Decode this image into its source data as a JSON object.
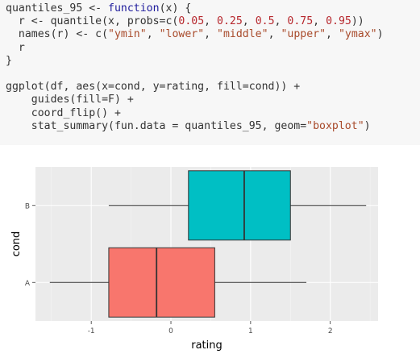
{
  "code": {
    "lines": [
      [
        {
          "t": "quantiles_95 <- "
        },
        {
          "t": "function",
          "c": "kw"
        },
        {
          "t": "(x) {"
        }
      ],
      [
        {
          "t": "  r <- quantile(x, probs=c("
        },
        {
          "t": "0.05",
          "c": "num"
        },
        {
          "t": ", "
        },
        {
          "t": "0.25",
          "c": "num"
        },
        {
          "t": ", "
        },
        {
          "t": "0.5",
          "c": "num"
        },
        {
          "t": ", "
        },
        {
          "t": "0.75",
          "c": "num"
        },
        {
          "t": ", "
        },
        {
          "t": "0.95",
          "c": "num"
        },
        {
          "t": "))"
        }
      ],
      [
        {
          "t": "  names(r) <- c("
        },
        {
          "t": "\"ymin\"",
          "c": "str"
        },
        {
          "t": ", "
        },
        {
          "t": "\"lower\"",
          "c": "str"
        },
        {
          "t": ", "
        },
        {
          "t": "\"middle\"",
          "c": "str"
        },
        {
          "t": ", "
        },
        {
          "t": "\"upper\"",
          "c": "str"
        },
        {
          "t": ", "
        },
        {
          "t": "\"ymax\"",
          "c": "str"
        },
        {
          "t": ")"
        }
      ],
      [
        {
          "t": "  r"
        }
      ],
      [
        {
          "t": "}"
        }
      ],
      [
        {
          "t": ""
        }
      ],
      [
        {
          "t": "ggplot(df, aes(x=cond, y=rating, fill=cond)) +"
        }
      ],
      [
        {
          "t": "    guides(fill=F) +"
        }
      ],
      [
        {
          "t": "    coord_flip() +"
        }
      ],
      [
        {
          "t": "    stat_summary(fun.data = quantiles_95, geom="
        },
        {
          "t": "\"boxplot\"",
          "c": "str"
        },
        {
          "t": ")"
        }
      ]
    ],
    "colors": {
      "keyword": "#1f1c9c",
      "number": "#b7282e",
      "string": "#a84a2a"
    }
  },
  "chart_data": {
    "type": "boxplot",
    "orientation": "horizontal",
    "xlabel": "rating",
    "ylabel": "cond",
    "xlim": [
      -1.7,
      2.6
    ],
    "xticks": [
      -1,
      0,
      1,
      2
    ],
    "xtick_labels": [
      "-1",
      "0",
      "1",
      "2"
    ],
    "categories": [
      "A",
      "B"
    ],
    "boxes": [
      {
        "category": "A",
        "ymin": -1.52,
        "lower": -0.78,
        "middle": -0.18,
        "upper": 0.55,
        "ymax": 1.7,
        "fill": "#f8766d"
      },
      {
        "category": "B",
        "ymin": -0.78,
        "lower": 0.22,
        "middle": 0.92,
        "upper": 1.5,
        "ymax": 2.45,
        "fill": "#00bfc4"
      }
    ],
    "grid": true,
    "panel_background": "#ebebeb",
    "legend": "none"
  }
}
